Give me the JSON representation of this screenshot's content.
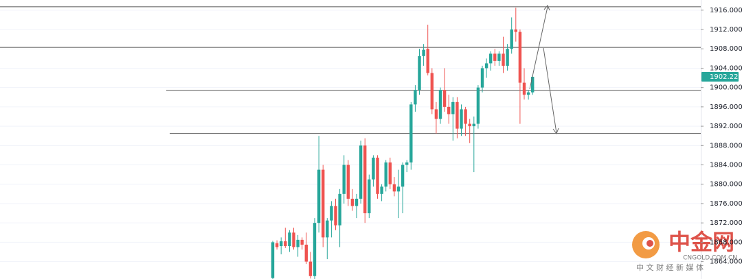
{
  "chart_data": {
    "type": "candlestick",
    "ylim": [
      1860.4,
      1918.1
    ],
    "yticks": [
      {
        "value": 1864,
        "label": "1864.000"
      },
      {
        "value": 1868,
        "label": "1868.000"
      },
      {
        "value": 1872,
        "label": "1872.000"
      },
      {
        "value": 1876,
        "label": "1876.000"
      },
      {
        "value": 1880,
        "label": "1880.000"
      },
      {
        "value": 1884,
        "label": "1884.000"
      },
      {
        "value": 1888,
        "label": "1888.000"
      },
      {
        "value": 1892,
        "label": "1892.000"
      },
      {
        "value": 1896,
        "label": "1896.000"
      },
      {
        "value": 1900,
        "label": "1900.000"
      },
      {
        "value": 1904,
        "label": "1904.000"
      },
      {
        "value": 1908,
        "label": "1908.000"
      },
      {
        "value": 1912,
        "label": "1912.000"
      },
      {
        "value": 1916,
        "label": "1916.000"
      }
    ],
    "grid": true,
    "up_color": "#26a69a",
    "down_color": "#ef5350",
    "open": [
      1860.6,
      1867.8,
      1867.2,
      1868.2,
      1867.2,
      1870.0,
      1867.0,
      1868.5,
      1867.5,
      1864.0,
      1861.0,
      1872.0,
      1883.0,
      1869.0,
      1872.5,
      1875.5,
      1871.5,
      1878.0,
      1884.0,
      1877.0,
      1875.5,
      1877.0,
      1888.0,
      1874.0,
      1881.0,
      1885.5,
      1878.0,
      1879.5,
      1884.5,
      1880.0,
      1878.5,
      1879.5,
      1884.0,
      1884.5,
      1896.5,
      1899.5,
      1906.5,
      1908.0,
      1903.0,
      1895.5,
      1893.5,
      1899.5,
      1896.0,
      1894.5,
      1897.0,
      1891.5,
      1895.5,
      1892.5,
      1892.0,
      1892.5,
      1900.0,
      1904.0,
      1905.0,
      1907.0,
      1905.5,
      1907.0,
      1904.5,
      1908.0,
      1912.0,
      1911.5,
      1901.0,
      1898.5,
      1899.0
    ],
    "high": [
      1868.3,
      1868.4,
      1869.0,
      1871.0,
      1870.5,
      1871.0,
      1869.5,
      1869.0,
      1870.0,
      1866.0,
      1873.0,
      1890.0,
      1884.0,
      1873.0,
      1876.5,
      1877.0,
      1879.0,
      1886.0,
      1885.0,
      1879.0,
      1878.0,
      1889.0,
      1889.5,
      1882.0,
      1886.0,
      1886.0,
      1880.0,
      1885.0,
      1885.5,
      1881.5,
      1883.0,
      1884.5,
      1885.0,
      1897.0,
      1900.5,
      1908.0,
      1909.0,
      1913.0,
      1904.0,
      1897.0,
      1900.0,
      1904.0,
      1898.5,
      1898.0,
      1898.0,
      1896.5,
      1896.0,
      1893.5,
      1894.0,
      1900.5,
      1904.5,
      1906.0,
      1907.5,
      1908.0,
      1907.5,
      1910.5,
      1909.0,
      1914.5,
      1916.5,
      1912.0,
      1904.0,
      1899.5,
      1902.5
    ],
    "low": [
      1860.4,
      1866.5,
      1865.5,
      1866.8,
      1866.0,
      1866.5,
      1865.0,
      1866.5,
      1863.5,
      1860.5,
      1860.4,
      1870.0,
      1867.0,
      1864.5,
      1869.0,
      1870.5,
      1867.0,
      1876.0,
      1875.5,
      1874.5,
      1873.0,
      1876.0,
      1872.0,
      1873.0,
      1879.5,
      1877.0,
      1876.5,
      1878.5,
      1879.0,
      1877.5,
      1873.0,
      1874.0,
      1882.5,
      1883.0,
      1895.0,
      1898.5,
      1904.5,
      1902.5,
      1894.5,
      1890.5,
      1892.5,
      1895.0,
      1892.5,
      1889.0,
      1889.5,
      1890.0,
      1890.0,
      1888.5,
      1882.5,
      1891.5,
      1899.0,
      1902.0,
      1903.5,
      1904.5,
      1904.5,
      1903.0,
      1903.5,
      1907.0,
      1909.5,
      1892.5,
      1897.5,
      1897.5,
      1898.5
    ],
    "close": [
      1868.0,
      1867.0,
      1868.2,
      1867.2,
      1870.0,
      1867.0,
      1868.5,
      1867.5,
      1864.0,
      1861.0,
      1872.0,
      1883.0,
      1869.0,
      1872.5,
      1875.5,
      1871.5,
      1878.0,
      1884.0,
      1877.0,
      1875.5,
      1877.0,
      1888.0,
      1874.0,
      1881.0,
      1885.5,
      1878.0,
      1879.5,
      1884.5,
      1880.0,
      1878.5,
      1879.5,
      1884.0,
      1884.5,
      1896.5,
      1899.5,
      1906.5,
      1907.8,
      1903.0,
      1895.5,
      1893.5,
      1899.5,
      1896.0,
      1894.5,
      1897.0,
      1891.5,
      1895.5,
      1892.5,
      1892.0,
      1892.5,
      1900.0,
      1904.0,
      1905.0,
      1907.0,
      1905.5,
      1907.0,
      1904.5,
      1908.0,
      1912.0,
      1911.5,
      1901.0,
      1898.5,
      1899.0,
      1902.22
    ],
    "levels": [
      1916.7,
      1908.3,
      1899.4,
      1890.5
    ],
    "current_price": {
      "value": 1902.22,
      "label": "1902.220"
    },
    "watermark": {
      "brand": "中金网",
      "site": "CNGOLD.COM.CN",
      "slogan": "中 文 财 经 新 媒 体"
    }
  }
}
